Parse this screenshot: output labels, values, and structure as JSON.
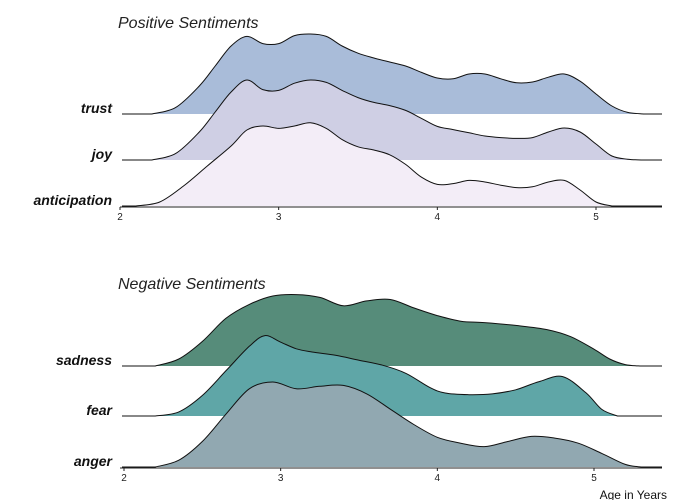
{
  "chart_data": [
    {
      "type": "ridgeline",
      "title": "Positive Sentiments",
      "x_domain": [
        2,
        5.4
      ],
      "x_ticks": [
        2,
        3,
        4,
        5
      ],
      "xlabel": "",
      "series": [
        {
          "name": "trust",
          "color": "#a9bcd9",
          "x": [
            2.2,
            2.35,
            2.5,
            2.6,
            2.7,
            2.8,
            2.9,
            3.0,
            3.1,
            3.2,
            3.3,
            3.4,
            3.5,
            3.6,
            3.7,
            3.8,
            3.9,
            4.0,
            4.1,
            4.2,
            4.3,
            4.4,
            4.5,
            4.6,
            4.7,
            4.8,
            4.9,
            5.0,
            5.1,
            5.2,
            5.3
          ],
          "y": [
            0.0,
            0.08,
            0.35,
            0.6,
            0.85,
            0.97,
            0.88,
            0.88,
            0.98,
            1.0,
            0.97,
            0.85,
            0.76,
            0.7,
            0.65,
            0.6,
            0.52,
            0.45,
            0.44,
            0.5,
            0.5,
            0.44,
            0.39,
            0.4,
            0.46,
            0.5,
            0.41,
            0.25,
            0.1,
            0.02,
            0.0
          ]
        },
        {
          "name": "joy",
          "color": "#cfcfe4",
          "x": [
            2.2,
            2.35,
            2.5,
            2.6,
            2.7,
            2.8,
            2.9,
            3.0,
            3.1,
            3.2,
            3.3,
            3.4,
            3.5,
            3.6,
            3.7,
            3.8,
            3.9,
            4.0,
            4.1,
            4.2,
            4.3,
            4.4,
            4.5,
            4.6,
            4.7,
            4.8,
            4.9,
            5.0,
            5.1,
            5.2,
            5.3
          ],
          "y": [
            0.0,
            0.08,
            0.35,
            0.6,
            0.85,
            1.0,
            0.88,
            0.87,
            0.96,
            1.0,
            0.97,
            0.87,
            0.78,
            0.72,
            0.68,
            0.62,
            0.52,
            0.42,
            0.38,
            0.34,
            0.3,
            0.28,
            0.27,
            0.28,
            0.35,
            0.4,
            0.35,
            0.2,
            0.05,
            0.01,
            0.0
          ]
        },
        {
          "name": "anticipation",
          "color": "#f3edf7",
          "x": [
            2.1,
            2.25,
            2.4,
            2.55,
            2.7,
            2.8,
            2.9,
            3.0,
            3.1,
            3.2,
            3.3,
            3.4,
            3.5,
            3.6,
            3.7,
            3.8,
            3.9,
            4.0,
            4.1,
            4.2,
            4.3,
            4.4,
            4.5,
            4.6,
            4.7,
            4.8,
            4.9,
            5.0,
            5.1
          ],
          "y": [
            0.0,
            0.05,
            0.25,
            0.5,
            0.75,
            0.95,
            1.0,
            0.97,
            1.0,
            1.04,
            0.97,
            0.83,
            0.74,
            0.7,
            0.64,
            0.52,
            0.36,
            0.27,
            0.28,
            0.32,
            0.3,
            0.26,
            0.23,
            0.24,
            0.3,
            0.32,
            0.2,
            0.05,
            0.0
          ]
        }
      ]
    },
    {
      "type": "ridgeline",
      "title": "Negative Sentiments",
      "x_domain": [
        2,
        5.4
      ],
      "x_ticks": [
        2,
        3,
        4,
        5
      ],
      "xlabel": "Age in Years",
      "series": [
        {
          "name": "sadness",
          "color": "#568c7a",
          "x": [
            2.2,
            2.35,
            2.5,
            2.65,
            2.8,
            2.95,
            3.1,
            3.25,
            3.4,
            3.55,
            3.7,
            3.85,
            4.0,
            4.15,
            4.3,
            4.5,
            4.7,
            4.85,
            5.0,
            5.1,
            5.2,
            5.3
          ],
          "y": [
            0.0,
            0.1,
            0.35,
            0.68,
            0.88,
            1.0,
            1.02,
            0.98,
            0.86,
            0.93,
            0.95,
            0.83,
            0.72,
            0.64,
            0.62,
            0.58,
            0.52,
            0.42,
            0.24,
            0.1,
            0.02,
            0.0
          ]
        },
        {
          "name": "fear",
          "color": "#5fa6a7",
          "x": [
            2.2,
            2.35,
            2.5,
            2.65,
            2.8,
            2.9,
            3.0,
            3.1,
            3.2,
            3.35,
            3.5,
            3.65,
            3.8,
            3.95,
            4.05,
            4.2,
            4.35,
            4.5,
            4.65,
            4.8,
            4.95,
            5.05,
            5.15
          ],
          "y": [
            0.0,
            0.05,
            0.25,
            0.55,
            0.85,
            0.98,
            0.9,
            0.82,
            0.78,
            0.74,
            0.68,
            0.62,
            0.52,
            0.35,
            0.28,
            0.26,
            0.27,
            0.32,
            0.42,
            0.48,
            0.28,
            0.08,
            0.0
          ]
        },
        {
          "name": "anger",
          "color": "#91a8b1",
          "x": [
            2.2,
            2.35,
            2.5,
            2.65,
            2.8,
            2.95,
            3.1,
            3.25,
            3.4,
            3.55,
            3.7,
            3.85,
            4.0,
            4.15,
            4.3,
            4.45,
            4.6,
            4.75,
            4.9,
            5.05,
            5.2,
            5.3
          ],
          "y": [
            0.0,
            0.08,
            0.3,
            0.62,
            0.92,
            1.0,
            0.92,
            0.95,
            0.96,
            0.86,
            0.68,
            0.5,
            0.35,
            0.28,
            0.24,
            0.3,
            0.36,
            0.34,
            0.28,
            0.16,
            0.03,
            0.0
          ]
        }
      ]
    }
  ]
}
